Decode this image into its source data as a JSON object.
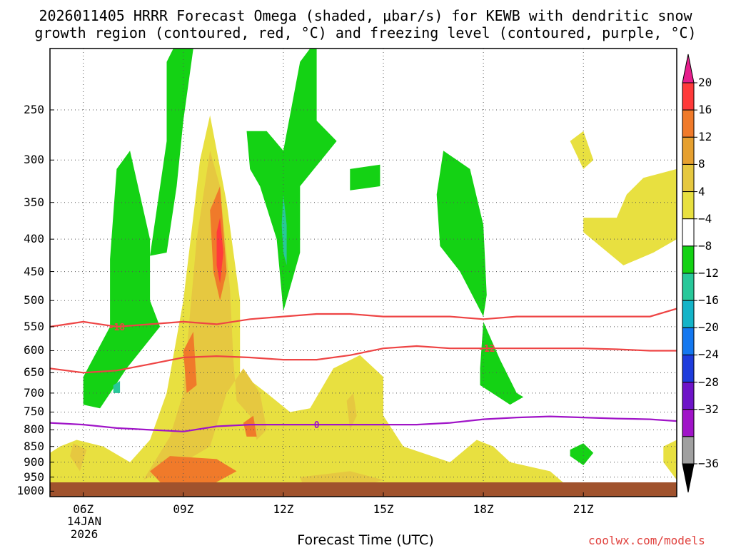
{
  "title": {
    "line1": "2026011405 HRRR Forecast Omega (shaded, μbar/s) for KEWB with dendritic snow",
    "line2": "growth region (contoured, red, °C) and freezing level (contoured, purple, °C)"
  },
  "xaxis_title": "Forecast Time (UTC)",
  "credit": "coolwx.com/models",
  "date_label": [
    "14JAN",
    "2026"
  ],
  "chart_data": {
    "type": "heatmap",
    "title": "2026011405 HRRR Forecast Omega (shaded, μbar/s) for KEWB with dendritic snow growth region (contoured, red, °C) and freezing level (contoured, purple, °C)",
    "xlabel": "Forecast Time (UTC)",
    "ylabel": "",
    "x_range_hours": [
      5,
      23.8
    ],
    "x_ticks": [
      {
        "hour": 6,
        "label": "06Z"
      },
      {
        "hour": 9,
        "label": "09Z"
      },
      {
        "hour": 12,
        "label": "12Z"
      },
      {
        "hour": 15,
        "label": "15Z"
      },
      {
        "hour": 18,
        "label": "18Z"
      },
      {
        "hour": 21,
        "label": "21Z"
      }
    ],
    "y_ticks_hpa": [
      250,
      300,
      350,
      400,
      450,
      500,
      550,
      600,
      650,
      700,
      750,
      800,
      850,
      900,
      950,
      1000
    ],
    "y_range_hpa": [
      1020,
      200
    ],
    "grid": true,
    "colorbar": {
      "labels": [
        "20",
        "16",
        "12",
        "8",
        "4",
        "−4",
        "−8",
        "−12",
        "−16",
        "−20",
        "−24",
        "−28",
        "−32",
        "−36"
      ],
      "colors": [
        "#ff3a3a",
        "#f07a2a",
        "#e6a030",
        "#e6c840",
        "#e8e040",
        "#ffffff",
        "#14d214",
        "#28c89a",
        "#14b4c8",
        "#1478f0",
        "#1e3cdc",
        "#6e14c8",
        "#a014c8",
        "#a0a0a0"
      ],
      "top_color": "#e61e8c",
      "bottom_color": "#000000"
    },
    "omega_regions": [
      {
        "level": "4 to 8",
        "color": "#e8e040",
        "polygon": [
          [
            5.3,
            850
          ],
          [
            5.8,
            830
          ],
          [
            6.6,
            850
          ],
          [
            7.4,
            900
          ],
          [
            8,
            830
          ],
          [
            8.5,
            700
          ],
          [
            9,
            500
          ],
          [
            9.5,
            300
          ],
          [
            9.8,
            255
          ],
          [
            10.3,
            350
          ],
          [
            10.7,
            500
          ],
          [
            10.7,
            650
          ],
          [
            11.5,
            700
          ],
          [
            12.2,
            750
          ],
          [
            12.8,
            740
          ],
          [
            13.5,
            640
          ],
          [
            14.3,
            610
          ],
          [
            15,
            660
          ],
          [
            15,
            760
          ],
          [
            15.6,
            850
          ],
          [
            17,
            900
          ],
          [
            17.8,
            830
          ],
          [
            18.3,
            850
          ],
          [
            18.8,
            900
          ],
          [
            20,
            930
          ],
          [
            20.6,
            990
          ],
          [
            19,
            1000
          ],
          [
            5,
            1000
          ],
          [
            5,
            870
          ]
        ]
      },
      {
        "level": "4 to 8",
        "color": "#e8e040",
        "polygon": [
          [
            20.6,
            280
          ],
          [
            21,
            270
          ],
          [
            21.3,
            300
          ],
          [
            21.0,
            310
          ],
          [
            20.6,
            280
          ]
        ]
      },
      {
        "level": "4 to 8",
        "color": "#e8e040",
        "polygon": [
          [
            21.0,
            370
          ],
          [
            22.0,
            370
          ],
          [
            22.3,
            340
          ],
          [
            22.8,
            320
          ],
          [
            23.8,
            310
          ],
          [
            23.8,
            400
          ],
          [
            23.1,
            420
          ],
          [
            22.2,
            440
          ],
          [
            21.0,
            390
          ]
        ]
      },
      {
        "level": "4 to 8",
        "color": "#e8e040",
        "polygon": [
          [
            23.4,
            850
          ],
          [
            23.8,
            830
          ],
          [
            23.8,
            960
          ],
          [
            23.4,
            900
          ]
        ]
      },
      {
        "level": "8 to 12",
        "color": "#e6c840",
        "polygon": [
          [
            9.1,
            600
          ],
          [
            9.4,
            400
          ],
          [
            9.8,
            290
          ],
          [
            10.1,
            330
          ],
          [
            10.4,
            480
          ],
          [
            10.5,
            620
          ],
          [
            10.6,
            720
          ],
          [
            11,
            760
          ],
          [
            11.2,
            830
          ],
          [
            11.5,
            800
          ],
          [
            11.3,
            700
          ],
          [
            10.8,
            640
          ],
          [
            10.3,
            700
          ],
          [
            9.8,
            850
          ],
          [
            9,
            900
          ],
          [
            7.8,
            960
          ],
          [
            8.6,
            820
          ],
          [
            9,
            700
          ]
        ]
      },
      {
        "level": "8 to 12",
        "color": "#e6c840",
        "polygon": [
          [
            5.7,
            840
          ],
          [
            6.1,
            860
          ],
          [
            5.9,
            930
          ],
          [
            5.6,
            880
          ]
        ]
      },
      {
        "level": "8 to 12",
        "color": "#e6c840",
        "polygon": [
          [
            12.5,
            950
          ],
          [
            14,
            930
          ],
          [
            15,
            960
          ],
          [
            14,
            995
          ],
          [
            12.6,
            980
          ]
        ]
      },
      {
        "level": "8 to 12",
        "color": "#e6c840",
        "polygon": [
          [
            13.9,
            720
          ],
          [
            14.1,
            700
          ],
          [
            14.2,
            760
          ],
          [
            14.0,
            800
          ]
        ]
      },
      {
        "level": "12 to 16",
        "color": "#f07a2a",
        "polygon": [
          [
            9.8,
            360
          ],
          [
            10.1,
            330
          ],
          [
            10.3,
            450
          ],
          [
            10.1,
            500
          ],
          [
            9.9,
            450
          ]
        ]
      },
      {
        "level": "12 to 16",
        "color": "#f07a2a",
        "polygon": [
          [
            9.0,
            600
          ],
          [
            9.3,
            560
          ],
          [
            9.4,
            680
          ],
          [
            9.1,
            700
          ]
        ]
      },
      {
        "level": "12 to 16",
        "color": "#f07a2a",
        "polygon": [
          [
            8.0,
            930
          ],
          [
            8.6,
            880
          ],
          [
            10,
            890
          ],
          [
            10.6,
            930
          ],
          [
            9.8,
            980
          ],
          [
            8.4,
            980
          ]
        ]
      },
      {
        "level": "12 to 16",
        "color": "#f07a2a",
        "polygon": [
          [
            10.8,
            780
          ],
          [
            11.1,
            760
          ],
          [
            11.2,
            820
          ],
          [
            10.9,
            820
          ]
        ]
      },
      {
        "level": "16 to 20",
        "color": "#ff3a3a",
        "polygon": [
          [
            10.0,
            390
          ],
          [
            10.1,
            370
          ],
          [
            10.2,
            420
          ],
          [
            10.1,
            470
          ],
          [
            10.0,
            440
          ]
        ]
      },
      {
        "level": "-4 to -8",
        "color": "#14d214",
        "polygon": [
          [
            7.0,
            310
          ],
          [
            7.4,
            290
          ],
          [
            8.0,
            400
          ],
          [
            8.0,
            500
          ],
          [
            8.3,
            550
          ],
          [
            7.3,
            640
          ],
          [
            6.5,
            740
          ],
          [
            6.0,
            730
          ],
          [
            6.0,
            660
          ],
          [
            6.8,
            550
          ],
          [
            6.8,
            430
          ]
        ]
      },
      {
        "level": "-4 to -8",
        "color": "#14d214",
        "polygon": [
          [
            8.5,
            210
          ],
          [
            8.7,
            180
          ],
          [
            9.0,
            170
          ],
          [
            9.3,
            200
          ],
          [
            9.0,
            260
          ],
          [
            8.8,
            330
          ],
          [
            8.5,
            420
          ],
          [
            8.0,
            425
          ],
          [
            8.2,
            360
          ],
          [
            8.5,
            280
          ]
        ]
      },
      {
        "level": "-4 to -8",
        "color": "#14d214",
        "polygon": [
          [
            10.9,
            270
          ],
          [
            11.5,
            270
          ],
          [
            12.0,
            290
          ],
          [
            12.5,
            210
          ],
          [
            12.8,
            170
          ],
          [
            13.0,
            200
          ],
          [
            13.0,
            260
          ],
          [
            13.6,
            280
          ],
          [
            12.5,
            330
          ],
          [
            12.5,
            420
          ],
          [
            12.0,
            520
          ],
          [
            11.8,
            400
          ],
          [
            11.3,
            330
          ],
          [
            11.0,
            310
          ]
        ]
      },
      {
        "level": "-4 to -8",
        "color": "#14d214",
        "polygon": [
          [
            14.0,
            310
          ],
          [
            14.9,
            305
          ],
          [
            14.9,
            330
          ],
          [
            14.0,
            335
          ]
        ]
      },
      {
        "level": "-4 to -8",
        "color": "#14d214",
        "polygon": [
          [
            16.6,
            340
          ],
          [
            16.8,
            290
          ],
          [
            17.6,
            310
          ],
          [
            18.0,
            380
          ],
          [
            18.1,
            490
          ],
          [
            18.0,
            530
          ],
          [
            17.3,
            450
          ],
          [
            16.7,
            410
          ]
        ]
      },
      {
        "level": "-4 to -8",
        "color": "#14d214",
        "polygon": [
          [
            17.9,
            640
          ],
          [
            18.0,
            540
          ],
          [
            18.5,
            620
          ],
          [
            19.0,
            700
          ],
          [
            19.2,
            710
          ],
          [
            18.8,
            730
          ],
          [
            17.9,
            680
          ]
        ]
      },
      {
        "level": "-4 to -8",
        "color": "#14d214",
        "polygon": [
          [
            20.6,
            860
          ],
          [
            21.0,
            840
          ],
          [
            21.3,
            870
          ],
          [
            21.0,
            910
          ],
          [
            20.6,
            880
          ]
        ]
      },
      {
        "level": "-8 to -12",
        "color": "#28c89a",
        "polygon": [
          [
            12.0,
            340
          ],
          [
            12.1,
            380
          ],
          [
            12.1,
            440
          ],
          [
            12.0,
            420
          ],
          [
            11.95,
            380
          ]
        ]
      },
      {
        "level": "-8 to -12",
        "color": "#28c89a",
        "polygon": [
          [
            6.9,
            680
          ],
          [
            7.1,
            670
          ],
          [
            7.1,
            700
          ],
          [
            6.9,
            700
          ]
        ]
      }
    ],
    "contours": [
      {
        "name": "-18",
        "color": "#ee4444",
        "label_at": {
          "hour": 7.0,
          "hpa": 550
        },
        "points": [
          [
            5,
            550
          ],
          [
            6,
            540
          ],
          [
            7,
            550
          ],
          [
            8,
            545
          ],
          [
            9,
            540
          ],
          [
            10,
            545
          ],
          [
            11,
            535
          ],
          [
            12,
            530
          ],
          [
            13,
            525
          ],
          [
            14,
            525
          ],
          [
            15,
            530
          ],
          [
            16,
            530
          ],
          [
            17,
            530
          ],
          [
            18,
            535
          ],
          [
            19,
            530
          ],
          [
            20,
            530
          ],
          [
            21,
            530
          ],
          [
            22,
            530
          ],
          [
            23,
            530
          ],
          [
            23.8,
            515
          ]
        ]
      },
      {
        "name": "-12",
        "color": "#ee4444",
        "label_at": {
          "hour": 18.1,
          "hpa": 595
        },
        "points": [
          [
            5,
            640
          ],
          [
            6,
            650
          ],
          [
            7,
            645
          ],
          [
            8,
            630
          ],
          [
            9,
            615
          ],
          [
            10,
            612
          ],
          [
            11,
            615
          ],
          [
            12,
            620
          ],
          [
            13,
            620
          ],
          [
            14,
            610
          ],
          [
            15,
            595
          ],
          [
            16,
            590
          ],
          [
            17,
            595
          ],
          [
            18,
            595
          ],
          [
            19,
            595
          ],
          [
            20,
            595
          ],
          [
            21,
            595
          ],
          [
            22,
            597
          ],
          [
            23,
            600
          ],
          [
            23.8,
            600
          ]
        ]
      },
      {
        "name": "0",
        "color": "#a014c8",
        "label_at": {
          "hour": 13.0,
          "hpa": 785
        },
        "points": [
          [
            5,
            780
          ],
          [
            6,
            785
          ],
          [
            7,
            795
          ],
          [
            8,
            800
          ],
          [
            9,
            805
          ],
          [
            10,
            790
          ],
          [
            11,
            785
          ],
          [
            12,
            785
          ],
          [
            13,
            785
          ],
          [
            14,
            785
          ],
          [
            15,
            785
          ],
          [
            16,
            785
          ],
          [
            17,
            780
          ],
          [
            18,
            770
          ],
          [
            19,
            765
          ],
          [
            20,
            762
          ],
          [
            21,
            765
          ],
          [
            22,
            768
          ],
          [
            23,
            770
          ],
          [
            23.8,
            775
          ]
        ]
      }
    ],
    "surface_band_color": "#a0522d"
  }
}
